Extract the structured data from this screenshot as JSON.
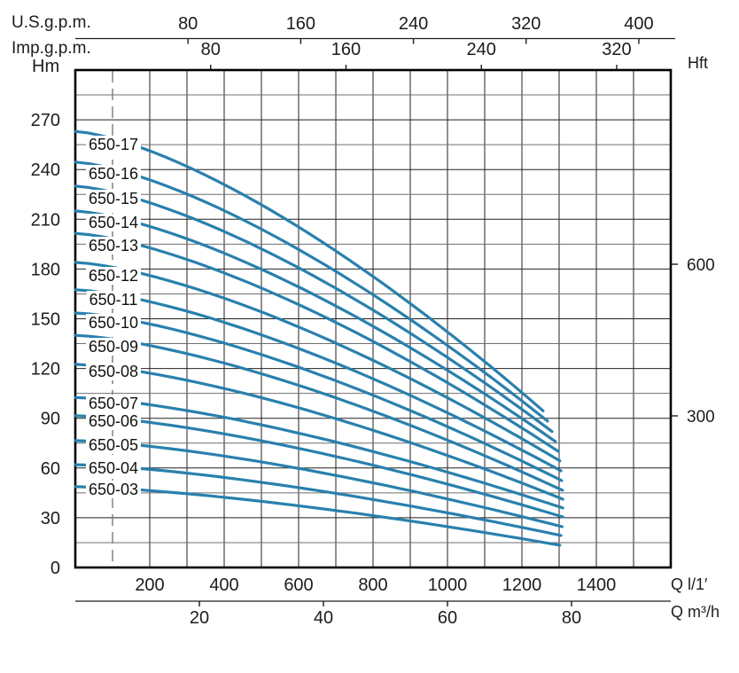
{
  "page": {
    "background": "#ffffff"
  },
  "colors": {
    "curve": "#2980ad",
    "grid_major": "#222222",
    "grid_minor": "#6f6f6f",
    "frame": "#000000",
    "text": "#1c1c1c",
    "dashed_line": "#7a7a7a"
  },
  "axes": {
    "top_us": {
      "label": "U.S.g.p.m.",
      "ticks": [
        80,
        160,
        240,
        320,
        400
      ]
    },
    "top_imp": {
      "label": "Imp.g.p.m.",
      "ticks": [
        80,
        160,
        240,
        320
      ]
    },
    "left_hm": {
      "label": "Hm",
      "ticks": [
        270,
        240,
        210,
        180,
        150,
        120,
        90,
        60,
        30,
        0
      ],
      "minor_step": 15
    },
    "right_hft": {
      "label": "Hft",
      "ticks": [
        600,
        300
      ]
    },
    "bottom_lmin": {
      "label": "Q l/1′",
      "ticks": [
        200,
        400,
        600,
        800,
        1000,
        1200,
        1400
      ],
      "grid_step": 100
    },
    "bottom_m3h": {
      "label": "Q m³/h",
      "ticks": [
        20,
        40,
        60,
        80
      ]
    }
  },
  "chart_data": {
    "type": "line",
    "x_unit": "l/1'",
    "y_unit": "m",
    "x_range": [
      0,
      1600
    ],
    "y_range": [
      0,
      300
    ],
    "grid": {
      "x_step": 100,
      "y_step": 15,
      "y_major_step": 30
    },
    "min_flow_dashed_line_x": 100,
    "shape_exponent": 1.45,
    "series": [
      {
        "name": "650-17",
        "h_shutoff_m": 263.0,
        "q_end_lmin": 1257,
        "h_end_m": 94.5,
        "label_h_m": 255.0
      },
      {
        "name": "650-16",
        "h_shutoff_m": 244.5,
        "q_end_lmin": 1269,
        "h_end_m": 88.3,
        "label_h_m": 237.5
      },
      {
        "name": "650-15",
        "h_shutoff_m": 230.0,
        "q_end_lmin": 1281,
        "h_end_m": 82.0,
        "label_h_m": 222.5
      },
      {
        "name": "650-14",
        "h_shutoff_m": 215.0,
        "q_end_lmin": 1290,
        "h_end_m": 76.0,
        "label_h_m": 208.0
      },
      {
        "name": "650-13",
        "h_shutoff_m": 201.5,
        "q_end_lmin": 1298,
        "h_end_m": 70.0,
        "label_h_m": 194.0
      },
      {
        "name": "650-12",
        "h_shutoff_m": 184.0,
        "q_end_lmin": 1302,
        "h_end_m": 64.3,
        "label_h_m": 176.0
      },
      {
        "name": "650-11",
        "h_shutoff_m": 167.5,
        "q_end_lmin": 1305,
        "h_end_m": 58.3,
        "label_h_m": 161.5
      },
      {
        "name": "650-10",
        "h_shutoff_m": 153.5,
        "q_end_lmin": 1307,
        "h_end_m": 52.4,
        "label_h_m": 147.5
      },
      {
        "name": "650-09",
        "h_shutoff_m": 140.0,
        "q_end_lmin": 1309,
        "h_end_m": 46.6,
        "label_h_m": 133.0
      },
      {
        "name": "650-08",
        "h_shutoff_m": 122.5,
        "q_end_lmin": 1310,
        "h_end_m": 41.2,
        "label_h_m": 118.0
      },
      {
        "name": "650-07",
        "h_shutoff_m": 102.5,
        "q_end_lmin": 1310,
        "h_end_m": 35.9,
        "label_h_m": 99.0
      },
      {
        "name": "650-06",
        "h_shutoff_m": 91.5,
        "q_end_lmin": 1310,
        "h_end_m": 30.5,
        "label_h_m": 88.3
      },
      {
        "name": "650-05",
        "h_shutoff_m": 76.5,
        "q_end_lmin": 1308,
        "h_end_m": 24.6,
        "label_h_m": 74.0
      },
      {
        "name": "650-04",
        "h_shutoff_m": 62.0,
        "q_end_lmin": 1305,
        "h_end_m": 19.3,
        "label_h_m": 60.0
      },
      {
        "name": "650-03",
        "h_shutoff_m": 48.7,
        "q_end_lmin": 1302,
        "h_end_m": 13.4,
        "label_h_m": 47.0
      }
    ]
  }
}
